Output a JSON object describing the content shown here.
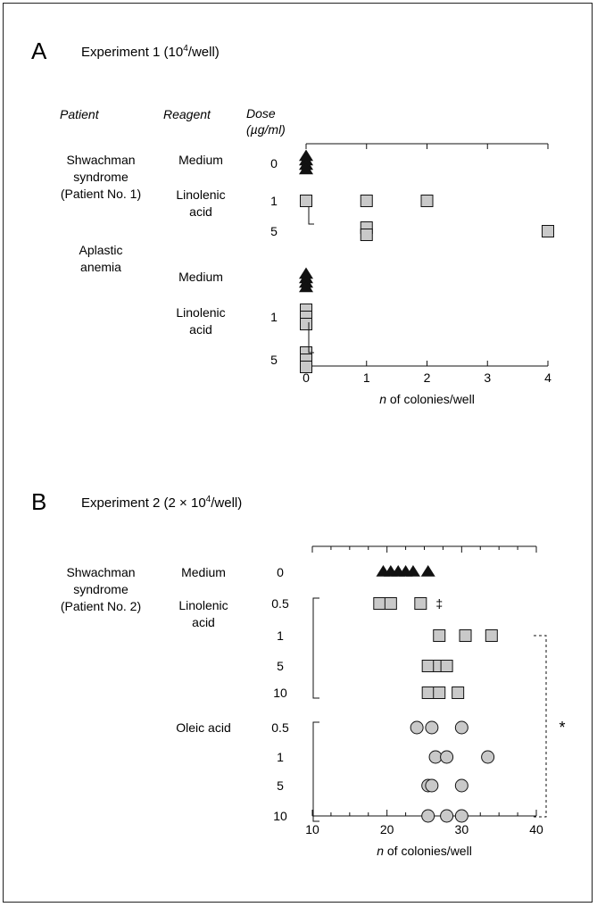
{
  "panel_a": {
    "letter": "A",
    "title_prefix": "Experiment 1 (10",
    "title_sup": "4",
    "title_suffix": "/well)"
  },
  "panel_b": {
    "letter": "B",
    "title_prefix": "Experiment 2 (2 × 10",
    "title_sup": "4",
    "title_suffix": "/well)"
  },
  "chart_data": [
    {
      "id": "A",
      "type": "scatter",
      "headers": {
        "patient": "Patient",
        "reagent": "Reagent",
        "dose_line1": "Dose",
        "dose_line2": "(µg/ml)"
      },
      "xlabel_italic": "n",
      "xlabel": " of colonies/well",
      "xlim": [
        0,
        4
      ],
      "xticks": [
        0,
        1,
        2,
        3,
        4
      ],
      "tick_labels": [
        "0",
        "1",
        "2",
        "3",
        "4"
      ],
      "groups": [
        {
          "patient_lines": [
            "Shwachman",
            "syndrome",
            "(Patient No. 1)"
          ],
          "rows": [
            {
              "reagent_lines": [
                "Medium"
              ],
              "dose": "0",
              "marker": "triangle",
              "values": [
                0,
                0,
                0,
                0
              ]
            },
            {
              "reagent_lines": [
                "Linolenic",
                "acid"
              ],
              "dose": "1",
              "marker": "square",
              "values": [
                0,
                1,
                2
              ]
            },
            {
              "reagent_lines": [],
              "dose": "5",
              "marker": "square",
              "values": [
                1,
                1,
                4
              ]
            }
          ]
        },
        {
          "patient_lines": [
            "Aplastic",
            "anemia"
          ],
          "rows": [
            {
              "reagent_lines": [
                "Medium"
              ],
              "dose": "",
              "marker": "triangle",
              "values": [
                0,
                0,
                0,
                0
              ]
            },
            {
              "reagent_lines": [
                "Linolenic",
                "acid"
              ],
              "dose": "1",
              "marker": "square",
              "values": [
                0,
                0,
                0
              ]
            },
            {
              "reagent_lines": [],
              "dose": "5",
              "marker": "square",
              "values": [
                0,
                0,
                0
              ]
            }
          ]
        }
      ]
    },
    {
      "id": "B",
      "type": "scatter",
      "xlabel_italic": "n",
      "xlabel": " of colonies/well",
      "xlim": [
        10,
        40
      ],
      "xticks": [
        10,
        20,
        30,
        40
      ],
      "tick_labels": [
        "10",
        "20",
        "30",
        "40"
      ],
      "patient_lines": [
        "Shwachman",
        "syndrome",
        "(Patient No. 2)"
      ],
      "rows": [
        {
          "reagent_lines": [
            "Medium"
          ],
          "dose": "0",
          "marker": "triangle",
          "values": [
            19.5,
            20.5,
            21.5,
            22.5,
            23.5,
            25.5
          ]
        },
        {
          "reagent_lines": [
            "Linolenic",
            "acid"
          ],
          "dose": "0.5",
          "marker": "square",
          "values": [
            19,
            20.5,
            24.5
          ],
          "annotation": "‡",
          "annotation_x": 27
        },
        {
          "reagent_lines": [],
          "dose": "1",
          "marker": "square",
          "values": [
            27,
            30.5,
            34
          ]
        },
        {
          "reagent_lines": [],
          "dose": "5",
          "marker": "square",
          "values": [
            25.5,
            27,
            28
          ]
        },
        {
          "reagent_lines": [],
          "dose": "10",
          "marker": "square",
          "values": [
            25.5,
            27,
            29.5
          ]
        },
        {
          "reagent_lines": [
            "Oleic acid"
          ],
          "dose": "0.5",
          "marker": "circle",
          "values": [
            24,
            26,
            30
          ]
        },
        {
          "reagent_lines": [],
          "dose": "1",
          "marker": "circle",
          "values": [
            26.5,
            28,
            33.5
          ]
        },
        {
          "reagent_lines": [],
          "dose": "5",
          "marker": "circle",
          "values": [
            25.5,
            26,
            30
          ]
        },
        {
          "reagent_lines": [],
          "dose": "10",
          "marker": "circle",
          "values": [
            25.5,
            28,
            30
          ]
        }
      ],
      "significance": "*"
    }
  ],
  "colors": {
    "marker_fill": "#c9c9c9",
    "ink": "#111111"
  }
}
